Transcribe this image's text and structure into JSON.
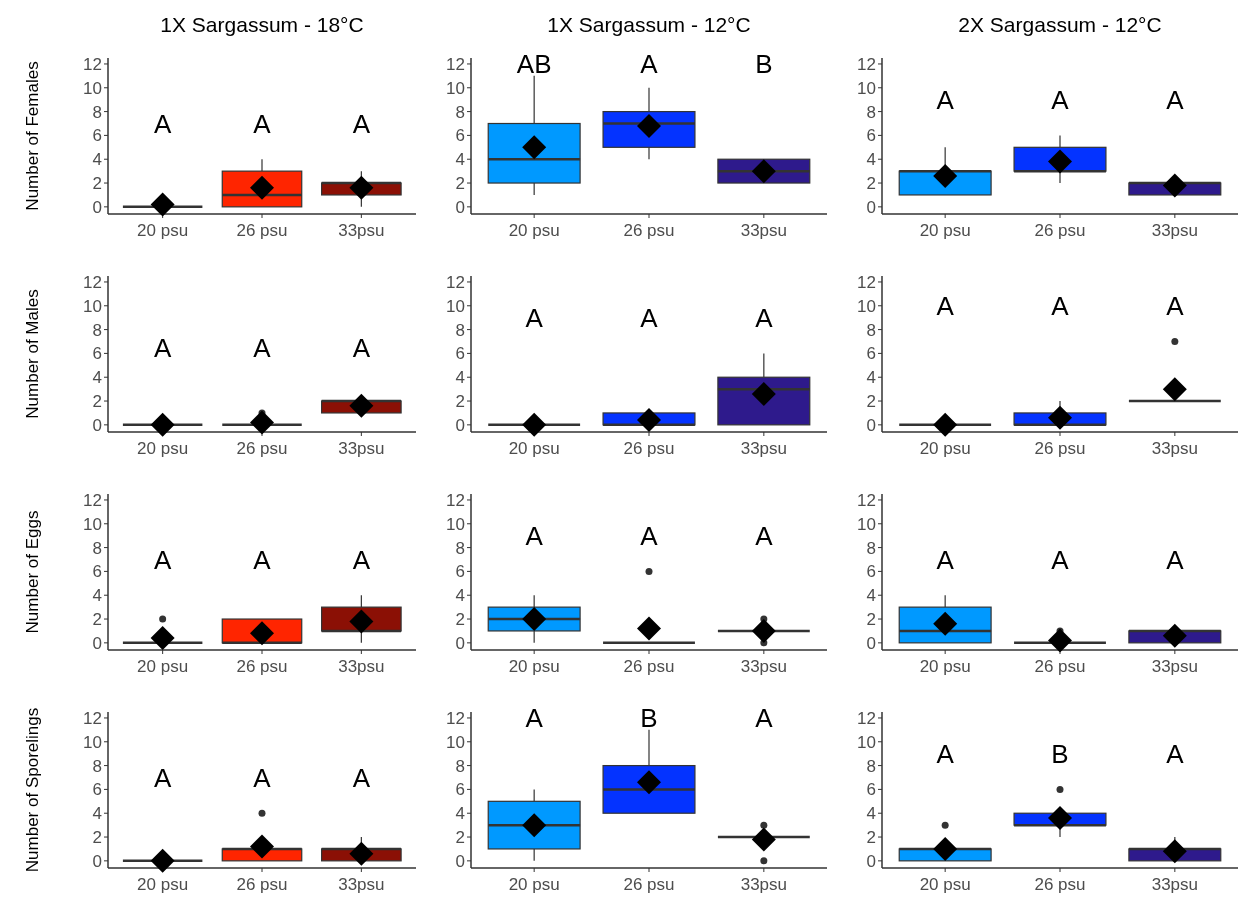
{
  "chart_data": [
    {
      "type": "box",
      "title": "1X Sargassum - 18°C",
      "ylabel": "Number of Females",
      "categories": [
        "20 psu",
        "26 psu",
        "33psu"
      ],
      "colors": [
        "#333333",
        "#ff2500",
        "#8b1005"
      ],
      "marker": "diamond",
      "ylim": [
        -0.6,
        12.5
      ],
      "yticks": [
        0,
        2,
        4,
        6,
        8,
        10,
        12
      ],
      "boxes": [
        {
          "low": 0,
          "q1": 0,
          "median": 0,
          "q3": 0,
          "high": 0,
          "mean": 0.2
        },
        {
          "low": 0,
          "q1": 0,
          "median": 1,
          "q3": 3,
          "high": 4,
          "mean": 1.6
        },
        {
          "low": 0,
          "q1": 1,
          "median": 2,
          "q3": 2,
          "high": 3,
          "mean": 1.6
        }
      ],
      "annotations": [
        "A",
        "A",
        "A"
      ]
    },
    {
      "type": "box",
      "title": "1X Sargassum - 12°C",
      "categories": [
        "20 psu",
        "26 psu",
        "33psu"
      ],
      "colors": [
        "#0099ff",
        "#0433ff",
        "#2e1a8c"
      ],
      "marker": "diamond",
      "ylim": [
        -0.6,
        12.5
      ],
      "yticks": [
        0,
        2,
        4,
        6,
        8,
        10,
        12
      ],
      "boxes": [
        {
          "low": 1,
          "q1": 2,
          "median": 4,
          "q3": 7,
          "high": 11,
          "mean": 5
        },
        {
          "low": 4,
          "q1": 5,
          "median": 7,
          "q3": 8,
          "high": 10,
          "mean": 6.8
        },
        {
          "low": 2,
          "q1": 2,
          "median": 3,
          "q3": 4,
          "high": 4,
          "mean": 3
        }
      ],
      "annotations": [
        "AB",
        "A",
        "B"
      ]
    },
    {
      "type": "box",
      "title": "2X Sargassum - 12°C",
      "categories": [
        "20 psu",
        "26 psu",
        "33psu"
      ],
      "colors": [
        "#0099ff",
        "#0433ff",
        "#2e1a8c"
      ],
      "marker": "diamond",
      "ylim": [
        -0.6,
        12.5
      ],
      "yticks": [
        0,
        2,
        4,
        6,
        8,
        10,
        12
      ],
      "boxes": [
        {
          "low": 1,
          "q1": 1,
          "median": 3,
          "q3": 3,
          "high": 5,
          "mean": 2.6
        },
        {
          "low": 2,
          "q1": 3,
          "median": 3,
          "q3": 5,
          "high": 6,
          "mean": 3.8
        },
        {
          "low": 1,
          "q1": 1,
          "median": 2,
          "q3": 2,
          "high": 2,
          "mean": 1.8
        }
      ],
      "annotations": [
        "A",
        "A",
        "A"
      ]
    },
    {
      "type": "box",
      "ylabel": "Number of Males",
      "categories": [
        "20 psu",
        "26 psu",
        "33psu"
      ],
      "colors": [
        "#333333",
        "#333333",
        "#8b1005"
      ],
      "marker": "diamond",
      "ylim": [
        -0.6,
        12.5
      ],
      "yticks": [
        0,
        2,
        4,
        6,
        8,
        10,
        12
      ],
      "boxes": [
        {
          "low": 0,
          "q1": 0,
          "median": 0,
          "q3": 0,
          "high": 0,
          "mean": 0
        },
        {
          "low": 0,
          "q1": 0,
          "median": 0,
          "q3": 0,
          "high": 0,
          "mean": 0.2,
          "outliers": [
            1
          ]
        },
        {
          "low": 1,
          "q1": 1,
          "median": 2,
          "q3": 2,
          "high": 2,
          "mean": 1.6
        }
      ],
      "annotations": [
        "A",
        "A",
        "A"
      ]
    },
    {
      "type": "box",
      "categories": [
        "20 psu",
        "26 psu",
        "33psu"
      ],
      "colors": [
        "#333333",
        "#0433ff",
        "#2e1a8c"
      ],
      "marker": "diamond",
      "ylim": [
        -0.6,
        12.5
      ],
      "yticks": [
        0,
        2,
        4,
        6,
        8,
        10,
        12
      ],
      "boxes": [
        {
          "low": 0,
          "q1": 0,
          "median": 0,
          "q3": 0,
          "high": 0,
          "mean": 0
        },
        {
          "low": 0,
          "q1": 0,
          "median": 0,
          "q3": 1,
          "high": 1,
          "mean": 0.4
        },
        {
          "low": 0,
          "q1": 0,
          "median": 3,
          "q3": 4,
          "high": 6,
          "mean": 2.6
        }
      ],
      "annotations": [
        "A",
        "A",
        "A"
      ]
    },
    {
      "type": "box",
      "categories": [
        "20 psu",
        "26 psu",
        "33psu"
      ],
      "colors": [
        "#333333",
        "#0433ff",
        "#333333"
      ],
      "marker": "diamond",
      "ylim": [
        -0.6,
        12.5
      ],
      "yticks": [
        0,
        2,
        4,
        6,
        8,
        10,
        12
      ],
      "boxes": [
        {
          "low": 0,
          "q1": 0,
          "median": 0,
          "q3": 0,
          "high": 0,
          "mean": 0
        },
        {
          "low": 0,
          "q1": 0,
          "median": 0,
          "q3": 1,
          "high": 2,
          "mean": 0.6
        },
        {
          "low": 2,
          "q1": 2,
          "median": 2,
          "q3": 2,
          "high": 2,
          "mean": 3,
          "outliers": [
            7
          ]
        }
      ],
      "annotations": [
        "A",
        "A",
        "A"
      ]
    },
    {
      "type": "box",
      "ylabel": "Number of Eggs",
      "categories": [
        "20 psu",
        "26 psu",
        "33psu"
      ],
      "colors": [
        "#333333",
        "#ff2500",
        "#8b1005"
      ],
      "marker": "diamond",
      "ylim": [
        -0.6,
        12.5
      ],
      "yticks": [
        0,
        2,
        4,
        6,
        8,
        10,
        12
      ],
      "boxes": [
        {
          "low": 0,
          "q1": 0,
          "median": 0,
          "q3": 0,
          "high": 0,
          "mean": 0.4,
          "outliers": [
            2
          ]
        },
        {
          "low": 0,
          "q1": 0,
          "median": 0,
          "q3": 2,
          "high": 2,
          "mean": 0.8
        },
        {
          "low": 0,
          "q1": 1,
          "median": 1,
          "q3": 3,
          "high": 4,
          "mean": 1.8
        }
      ],
      "annotations": [
        "A",
        "A",
        "A"
      ]
    },
    {
      "type": "box",
      "categories": [
        "20 psu",
        "26 psu",
        "33psu"
      ],
      "colors": [
        "#0099ff",
        "#333333",
        "#333333"
      ],
      "marker": "diamond",
      "ylim": [
        -0.6,
        12.5
      ],
      "yticks": [
        0,
        2,
        4,
        6,
        8,
        10,
        12
      ],
      "boxes": [
        {
          "low": 0,
          "q1": 1,
          "median": 2,
          "q3": 3,
          "high": 4,
          "mean": 2
        },
        {
          "low": 0,
          "q1": 0,
          "median": 0,
          "q3": 0,
          "high": 0,
          "mean": 1.2,
          "outliers": [
            6
          ]
        },
        {
          "low": 1,
          "q1": 1,
          "median": 1,
          "q3": 1,
          "high": 1,
          "mean": 1,
          "outliers": [
            0,
            2
          ]
        }
      ],
      "annotations": [
        "A",
        "A",
        "A"
      ]
    },
    {
      "type": "box",
      "categories": [
        "20 psu",
        "26 psu",
        "33psu"
      ],
      "colors": [
        "#0099ff",
        "#333333",
        "#2e1a8c"
      ],
      "marker": "diamond",
      "ylim": [
        -0.6,
        12.5
      ],
      "yticks": [
        0,
        2,
        4,
        6,
        8,
        10,
        12
      ],
      "boxes": [
        {
          "low": 0,
          "q1": 0,
          "median": 1,
          "q3": 3,
          "high": 4,
          "mean": 1.6
        },
        {
          "low": 0,
          "q1": 0,
          "median": 0,
          "q3": 0,
          "high": 0,
          "mean": 0.2,
          "outliers": [
            1
          ]
        },
        {
          "low": 0,
          "q1": 0,
          "median": 1,
          "q3": 1,
          "high": 1,
          "mean": 0.6
        }
      ],
      "annotations": [
        "A",
        "A",
        "A"
      ]
    },
    {
      "type": "box",
      "ylabel": "Number of Sporelings",
      "categories": [
        "20 psu",
        "26 psu",
        "33psu"
      ],
      "colors": [
        "#333333",
        "#ff2500",
        "#8b1005"
      ],
      "marker": "diamond",
      "ylim": [
        -0.6,
        12.5
      ],
      "yticks": [
        0,
        2,
        4,
        6,
        8,
        10,
        12
      ],
      "boxes": [
        {
          "low": 0,
          "q1": 0,
          "median": 0,
          "q3": 0,
          "high": 0,
          "mean": 0
        },
        {
          "low": 0,
          "q1": 0,
          "median": 1,
          "q3": 1,
          "high": 1,
          "mean": 1.2,
          "outliers": [
            4
          ]
        },
        {
          "low": 0,
          "q1": 0,
          "median": 1,
          "q3": 1,
          "high": 2,
          "mean": 0.6
        }
      ],
      "annotations": [
        "A",
        "A",
        "A"
      ]
    },
    {
      "type": "box",
      "categories": [
        "20 psu",
        "26 psu",
        "33psu"
      ],
      "colors": [
        "#0099ff",
        "#0433ff",
        "#333333"
      ],
      "marker": "diamond",
      "ylim": [
        -0.6,
        12.5
      ],
      "yticks": [
        0,
        2,
        4,
        6,
        8,
        10,
        12
      ],
      "boxes": [
        {
          "low": 0,
          "q1": 1,
          "median": 3,
          "q3": 5,
          "high": 6,
          "mean": 3
        },
        {
          "low": 4,
          "q1": 4,
          "median": 6,
          "q3": 8,
          "high": 11,
          "mean": 6.6
        },
        {
          "low": 2,
          "q1": 2,
          "median": 2,
          "q3": 2,
          "high": 2,
          "mean": 1.8,
          "outliers": [
            0,
            3
          ]
        }
      ],
      "annotations": [
        "A",
        "B",
        "A"
      ]
    },
    {
      "type": "box",
      "categories": [
        "20 psu",
        "26 psu",
        "33psu"
      ],
      "colors": [
        "#0099ff",
        "#0433ff",
        "#2e1a8c"
      ],
      "marker": "diamond",
      "ylim": [
        -0.6,
        12.5
      ],
      "yticks": [
        0,
        2,
        4,
        6,
        8,
        10,
        12
      ],
      "boxes": [
        {
          "low": 0,
          "q1": 0,
          "median": 1,
          "q3": 1,
          "high": 1,
          "mean": 1,
          "outliers": [
            3
          ]
        },
        {
          "low": 2,
          "q1": 3,
          "median": 3,
          "q3": 4,
          "high": 4,
          "mean": 3.6,
          "outliers": [
            6
          ]
        },
        {
          "low": 0,
          "q1": 0,
          "median": 1,
          "q3": 1,
          "high": 2,
          "mean": 0.8
        }
      ],
      "annotations": [
        "A",
        "B",
        "A"
      ]
    }
  ]
}
